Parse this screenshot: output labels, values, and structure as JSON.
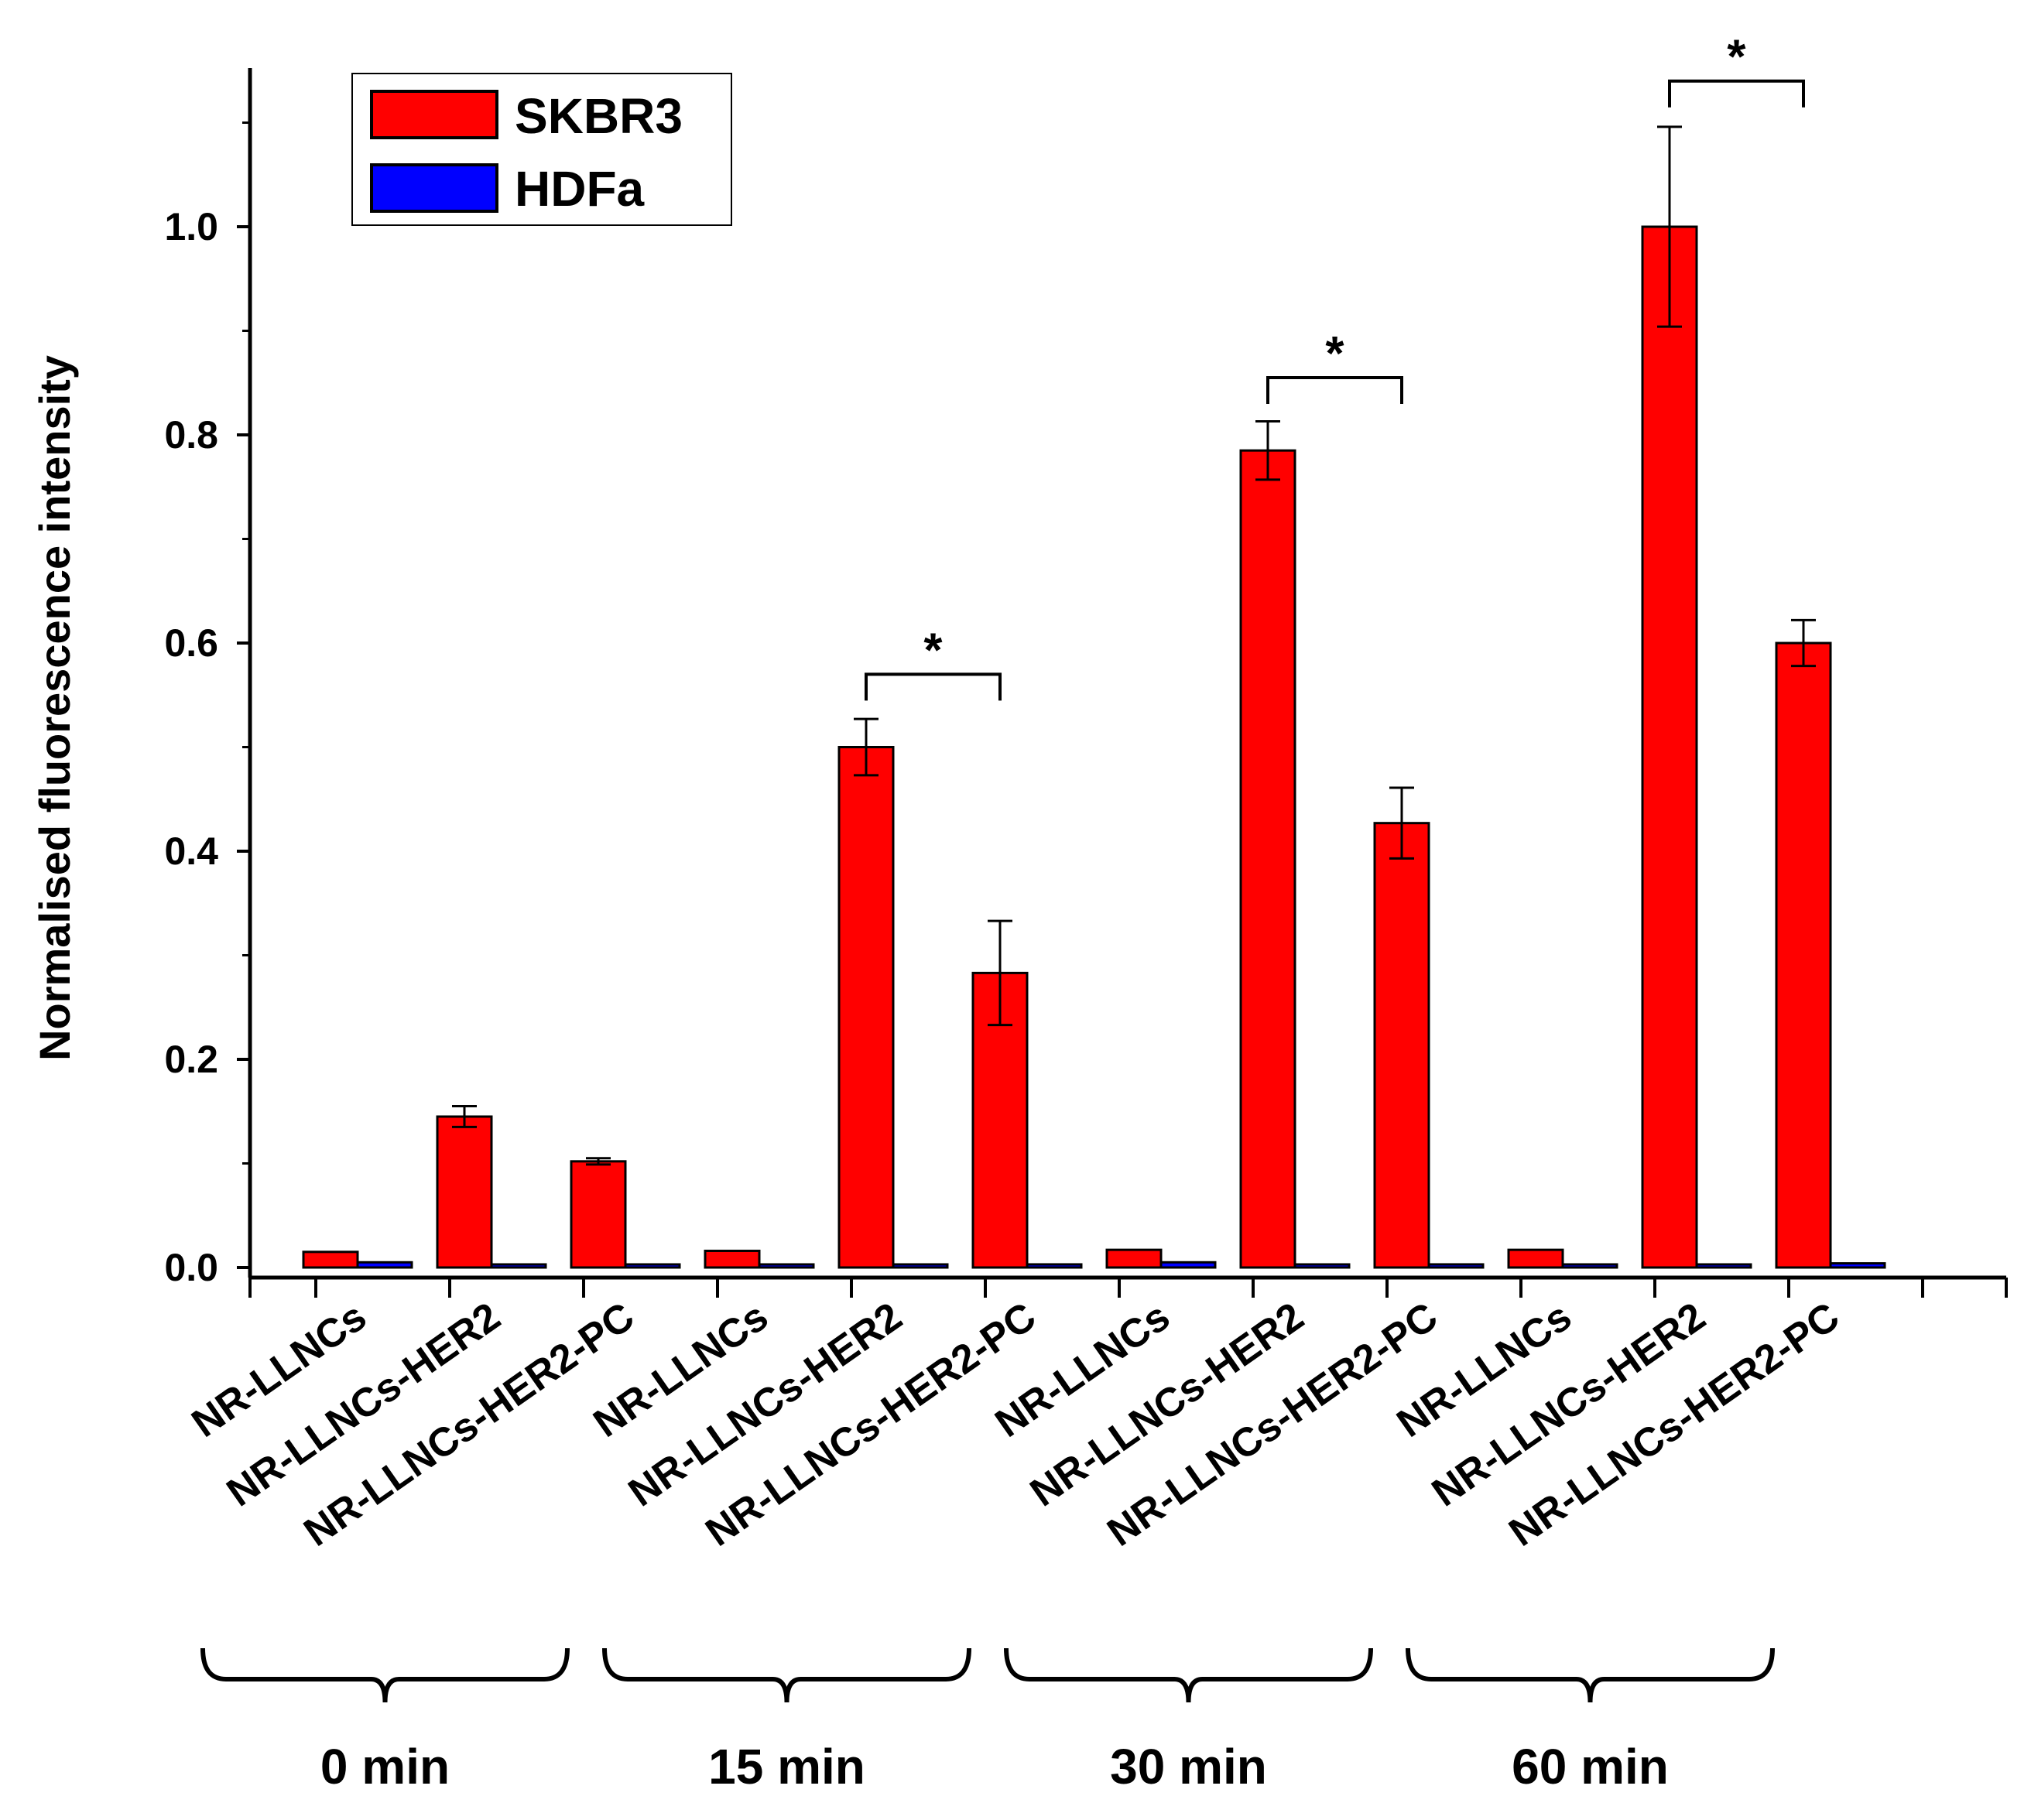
{
  "chart_data": {
    "type": "bar",
    "title": "",
    "xlabel": "",
    "ylabel": "Normalised fluorescence intensity",
    "ylim": [
      -0.01,
      1.15
    ],
    "yticks": [
      0.0,
      0.2,
      0.4,
      0.6,
      0.8,
      1.0
    ],
    "ytick_labels": [
      "0.0",
      "0.2",
      "0.4",
      "0.6",
      "0.8",
      "1.0"
    ],
    "grid": false,
    "legend_position": "top-left",
    "categories": [
      "NR-LLNCs",
      "NR-LLNCs-HER2",
      "NR-LLNCs-HER2-PC",
      "NR-LLNCs",
      "NR-LLNCs-HER2",
      "NR-LLNCs-HER2-PC",
      "NR-LLNCs",
      "NR-LLNCs-HER2",
      "NR-LLNCs-HER2-PC",
      "NR-LLNCs",
      "NR-LLNCs-HER2",
      "NR-LLNCs-HER2-PC"
    ],
    "groups": [
      {
        "label": "0 min",
        "category_indices": [
          0,
          1,
          2
        ]
      },
      {
        "label": "15 min",
        "category_indices": [
          3,
          4,
          5
        ]
      },
      {
        "label": "30 min",
        "category_indices": [
          6,
          7,
          8
        ]
      },
      {
        "label": "60 min",
        "category_indices": [
          9,
          10,
          11
        ]
      }
    ],
    "series": [
      {
        "name": "SKBR3",
        "color": "#ff0000",
        "values": [
          0.015,
          0.145,
          0.102,
          0.016,
          0.5,
          0.283,
          0.017,
          0.785,
          0.427,
          0.017,
          1.0,
          0.6
        ],
        "errors": [
          0.001,
          0.01,
          0.003,
          0.001,
          0.027,
          0.05,
          0.001,
          0.028,
          0.034,
          0.001,
          0.096,
          0.022
        ]
      },
      {
        "name": "HDFa",
        "color": "#0000ff",
        "values": [
          0.005,
          0.001,
          0.001,
          0.001,
          0.002,
          0.003,
          0.005,
          0.002,
          0.003,
          0.002,
          0.001,
          0.004
        ],
        "errors": [
          0,
          0,
          0,
          0,
          0,
          0,
          0,
          0,
          0,
          0,
          0,
          0
        ]
      }
    ],
    "annotations": [
      {
        "text": "*",
        "from_category": 4,
        "to_category": 5,
        "level": 0.57
      },
      {
        "text": "*",
        "from_category": 7,
        "to_category": 8,
        "level": 0.855
      },
      {
        "text": "*",
        "from_category": 10,
        "to_category": 11,
        "level": 1.14
      }
    ]
  }
}
